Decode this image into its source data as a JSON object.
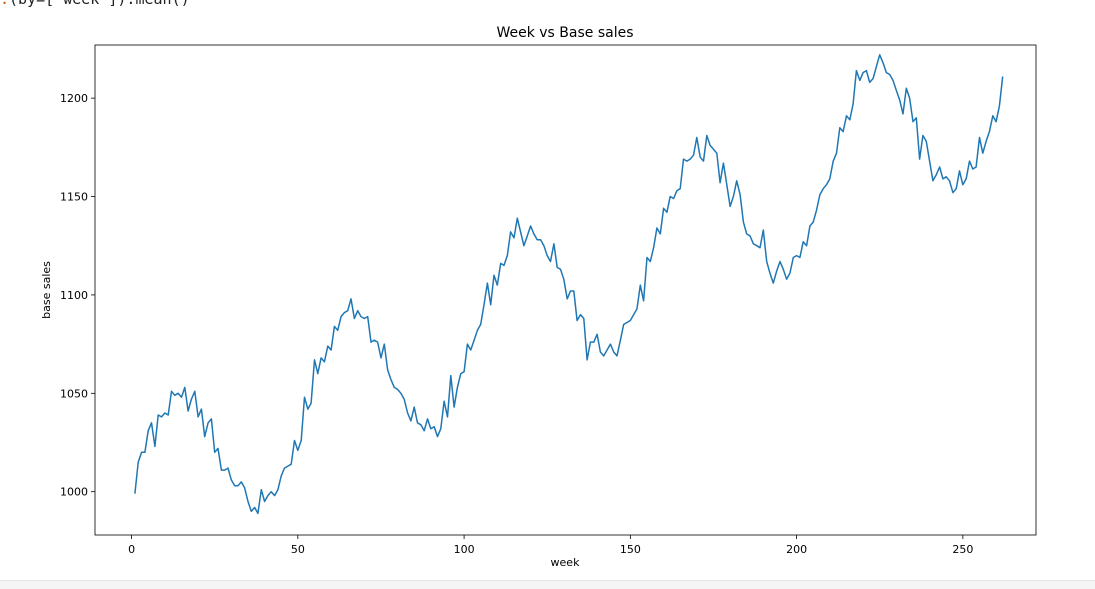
{
  "header_snippet": "(by=['week']).mean()",
  "chart_data": {
    "type": "line",
    "title": "Week vs Base sales",
    "xlabel": "week",
    "ylabel": "base sales",
    "xlim": [
      -11,
      272
    ],
    "ylim": [
      978,
      1227
    ],
    "xticks": [
      0,
      50,
      100,
      150,
      200,
      250
    ],
    "yticks": [
      1000,
      1050,
      1100,
      1150,
      1200
    ],
    "grid": false,
    "legend": "none",
    "series": [
      {
        "color": "#1f77b4",
        "x_start": 1,
        "x_step": 1,
        "values": [
          999,
          1015,
          1020,
          1020,
          1031,
          1035,
          1023,
          1039,
          1038,
          1040,
          1039,
          1051,
          1049,
          1050,
          1048,
          1053,
          1041,
          1047,
          1051,
          1038,
          1042,
          1028,
          1035,
          1037,
          1020,
          1022,
          1011,
          1011,
          1012,
          1006,
          1003,
          1003,
          1005,
          1002,
          995,
          990,
          992,
          989,
          1001,
          995,
          998,
          1000,
          998,
          1001,
          1008,
          1012,
          1013,
          1014,
          1026,
          1021,
          1026,
          1048,
          1042,
          1045,
          1067,
          1060,
          1068,
          1066,
          1074,
          1072,
          1084,
          1082,
          1089,
          1091,
          1092,
          1098,
          1088,
          1092,
          1089,
          1088,
          1089,
          1076,
          1077,
          1076,
          1068,
          1075,
          1062,
          1057,
          1053,
          1052,
          1050,
          1047,
          1040,
          1036,
          1043,
          1035,
          1034,
          1031,
          1037,
          1032,
          1033,
          1028,
          1032,
          1046,
          1038,
          1059,
          1043,
          1053,
          1060,
          1061,
          1075,
          1072,
          1077,
          1082,
          1085,
          1095,
          1106,
          1095,
          1110,
          1105,
          1116,
          1115,
          1120,
          1132,
          1129,
          1139,
          1132,
          1125,
          1130,
          1135,
          1131,
          1128,
          1128,
          1125,
          1120,
          1117,
          1126,
          1114,
          1113,
          1108,
          1098,
          1102,
          1102,
          1087,
          1090,
          1088,
          1067,
          1076,
          1076,
          1080,
          1071,
          1069,
          1072,
          1075,
          1071,
          1069,
          1077,
          1085,
          1086,
          1087,
          1090,
          1093,
          1105,
          1097,
          1119,
          1117,
          1124,
          1134,
          1131,
          1144,
          1142,
          1150,
          1149,
          1153,
          1154,
          1169,
          1168,
          1169,
          1171,
          1180,
          1170,
          1168,
          1181,
          1176,
          1174,
          1172,
          1157,
          1167,
          1156,
          1145,
          1150,
          1158,
          1151,
          1137,
          1131,
          1130,
          1126,
          1125,
          1124,
          1133,
          1117,
          1111,
          1106,
          1112,
          1117,
          1113,
          1108,
          1111,
          1119,
          1120,
          1119,
          1127,
          1125,
          1135,
          1137,
          1143,
          1151,
          1154,
          1156,
          1159,
          1168,
          1172,
          1185,
          1183,
          1191,
          1189,
          1197,
          1214,
          1209,
          1213,
          1214,
          1208,
          1210,
          1216,
          1222,
          1218,
          1213,
          1212,
          1209,
          1204,
          1199,
          1192,
          1205,
          1200,
          1188,
          1190,
          1169,
          1181,
          1178,
          1168,
          1158,
          1161,
          1165,
          1159,
          1160,
          1158,
          1152,
          1154,
          1163,
          1156,
          1159,
          1168,
          1164,
          1165,
          1180,
          1172,
          1178,
          1183,
          1191,
          1188,
          1196,
          1211
        ]
      }
    ]
  }
}
